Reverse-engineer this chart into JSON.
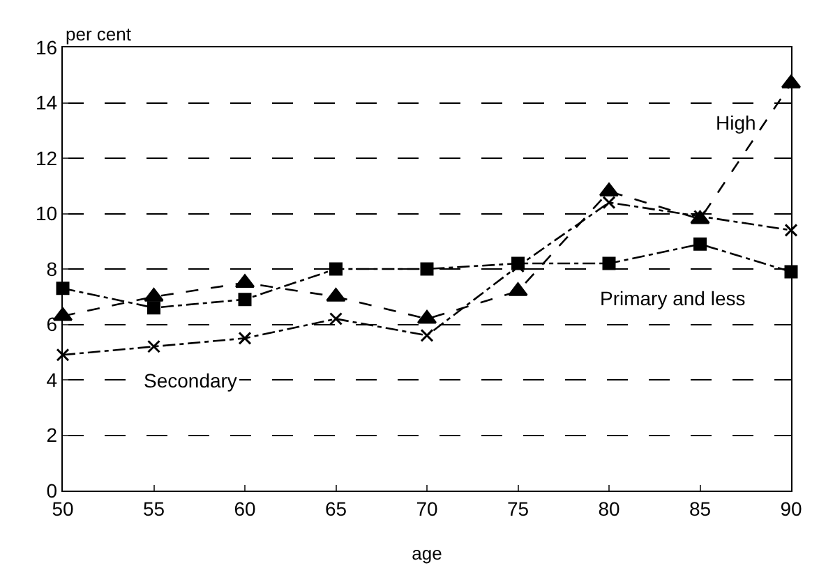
{
  "chart_data": {
    "type": "line",
    "xlabel": "age",
    "ylabel": "per cent",
    "x": [
      50,
      55,
      60,
      65,
      70,
      75,
      80,
      85,
      90
    ],
    "series": [
      {
        "name": "Primary and less",
        "color": "#000000",
        "marker": "square",
        "line_style": "dotted",
        "values": [
          7.3,
          6.6,
          6.9,
          8.0,
          8.0,
          8.2,
          8.2,
          8.9,
          7.9
        ]
      },
      {
        "name": "High",
        "color": "#000000",
        "marker": "triangle",
        "line_style": "dashed",
        "values": [
          6.3,
          7.0,
          7.5,
          7.0,
          6.2,
          7.2,
          10.8,
          9.8,
          14.7
        ]
      },
      {
        "name": "Secondary",
        "color": "#000000",
        "marker": "cross",
        "line_style": "dotted",
        "values": [
          4.9,
          5.2,
          5.5,
          6.2,
          5.6,
          8.1,
          10.4,
          9.9,
          9.4
        ]
      }
    ],
    "xlim": [
      50,
      90
    ],
    "xticks": [
      50,
      55,
      60,
      65,
      70,
      75,
      80,
      85,
      90
    ],
    "ylim": [
      0,
      16
    ],
    "yticks": [
      0,
      2,
      4,
      6,
      8,
      10,
      12,
      14,
      16
    ],
    "grid": "y",
    "legend": false
  }
}
